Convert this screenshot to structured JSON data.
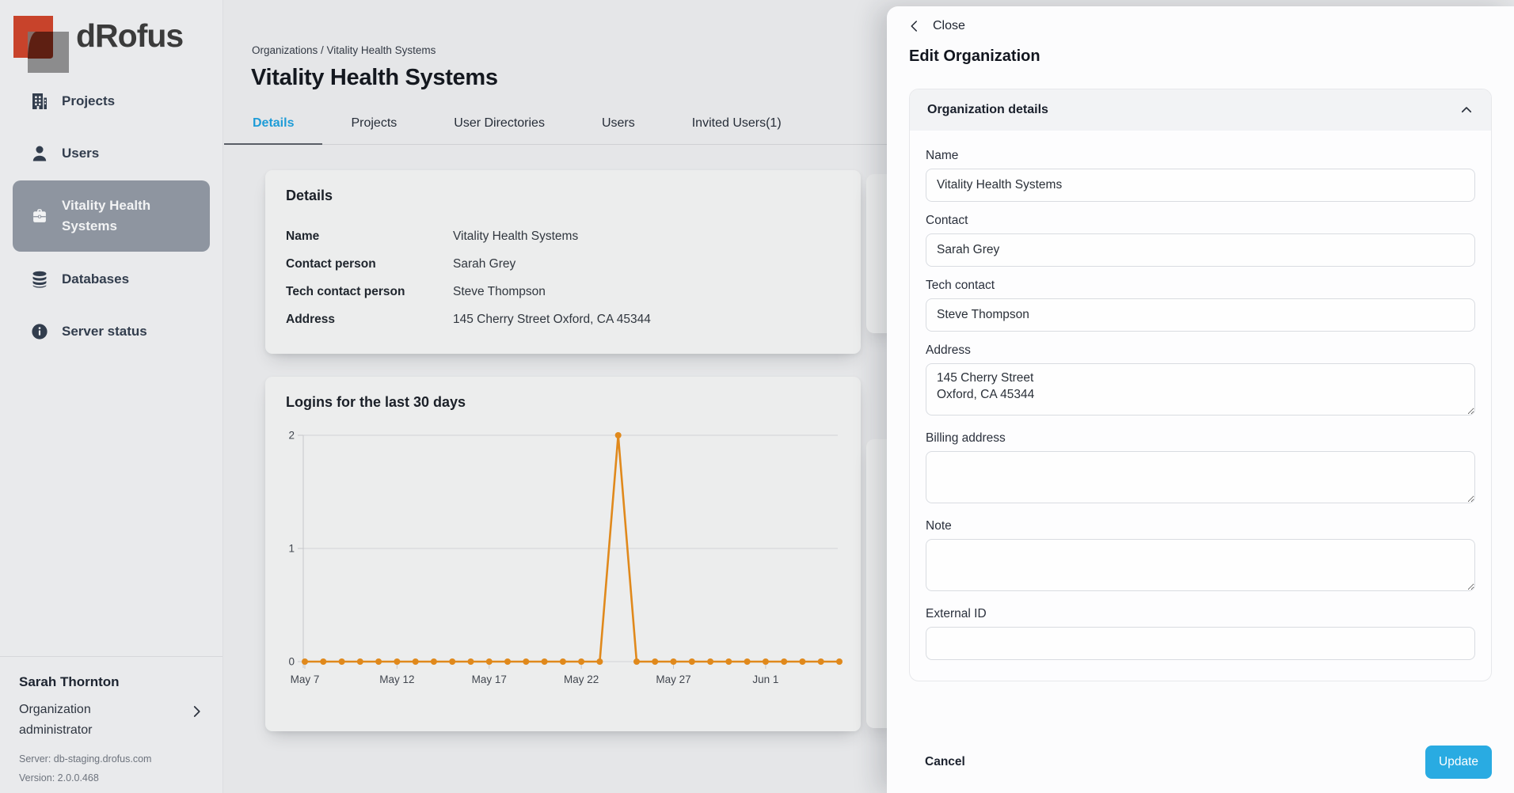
{
  "app": {
    "logo_text": "dRofus"
  },
  "sidebar": {
    "items": [
      {
        "label": "Projects",
        "icon": "building"
      },
      {
        "label": "Users",
        "icon": "user"
      },
      {
        "label": "Vitality Health Systems",
        "icon": "briefcase",
        "selected": true
      },
      {
        "label": "Databases",
        "icon": "database"
      },
      {
        "label": "Server status",
        "icon": "info"
      }
    ],
    "footer": {
      "user_name": "Sarah Thornton",
      "user_role": "Organization administrator",
      "server": "Server: db-staging.drofus.com",
      "version": "Version: 2.0.0.468"
    }
  },
  "main": {
    "breadcrumb": "Organizations / Vitality Health Systems",
    "title": "Vitality Health Systems",
    "tabs": [
      {
        "label": "Details",
        "active": true
      },
      {
        "label": "Projects",
        "active": false
      },
      {
        "label": "User Directories",
        "active": false
      },
      {
        "label": "Users",
        "active": false
      },
      {
        "label": "Invited Users(1)",
        "active": false
      }
    ],
    "details_card": {
      "title": "Details",
      "rows": [
        {
          "label": "Name",
          "value": "Vitality Health Systems"
        },
        {
          "label": "Contact person",
          "value": "Sarah Grey"
        },
        {
          "label": "Tech contact person",
          "value": "Steve Thompson"
        },
        {
          "label": "Address",
          "value": "145 Cherry Street Oxford, CA 45344"
        }
      ]
    }
  },
  "chart_data": {
    "type": "line",
    "title": "Logins for the last 30 days",
    "x": [
      "May 7",
      "May 8",
      "May 9",
      "May 10",
      "May 11",
      "May 12",
      "May 13",
      "May 14",
      "May 15",
      "May 16",
      "May 17",
      "May 18",
      "May 19",
      "May 20",
      "May 21",
      "May 22",
      "May 23",
      "May 24",
      "May 25",
      "May 26",
      "May 27",
      "May 28",
      "May 29",
      "May 30",
      "May 31",
      "Jun 1",
      "Jun 2",
      "Jun 3",
      "Jun 4",
      "Jun 5"
    ],
    "values": [
      0,
      0,
      0,
      0,
      0,
      0,
      0,
      0,
      0,
      0,
      0,
      0,
      0,
      0,
      0,
      0,
      0,
      2,
      0,
      0,
      0,
      0,
      0,
      0,
      0,
      0,
      0,
      0,
      0,
      0
    ],
    "x_tick_labels": [
      "May 7",
      "May 12",
      "May 17",
      "May 22",
      "May 27",
      "Jun 1"
    ],
    "y_ticks": [
      0,
      1,
      2
    ],
    "ylim": [
      0,
      2
    ],
    "grid": true,
    "legend": "none",
    "line_color": "#e0891c"
  },
  "drawer": {
    "close_label": "Close",
    "title": "Edit Organization",
    "section_title": "Organization details",
    "fields": [
      {
        "label": "Name",
        "value": "Vitality Health Systems"
      },
      {
        "label": "Contact",
        "value": "Sarah Grey"
      },
      {
        "label": "Tech contact",
        "value": "Steve Thompson"
      },
      {
        "label": "Address",
        "value": "145 Cherry Street\nOxford, CA 45344"
      },
      {
        "label": "Billing address",
        "value": ""
      },
      {
        "label": "Note",
        "value": ""
      },
      {
        "label": "External ID",
        "value": ""
      }
    ],
    "cancel_label": "Cancel",
    "update_label": "Update"
  },
  "colors": {
    "accent_blue": "#29abe2",
    "active_tab_blue": "#1e9cd7",
    "chart_orange": "#e0891c",
    "selected_item_gray": "#8e95a0",
    "logo_orange": "#c8432b",
    "logo_dark_red": "#5e1f12"
  }
}
